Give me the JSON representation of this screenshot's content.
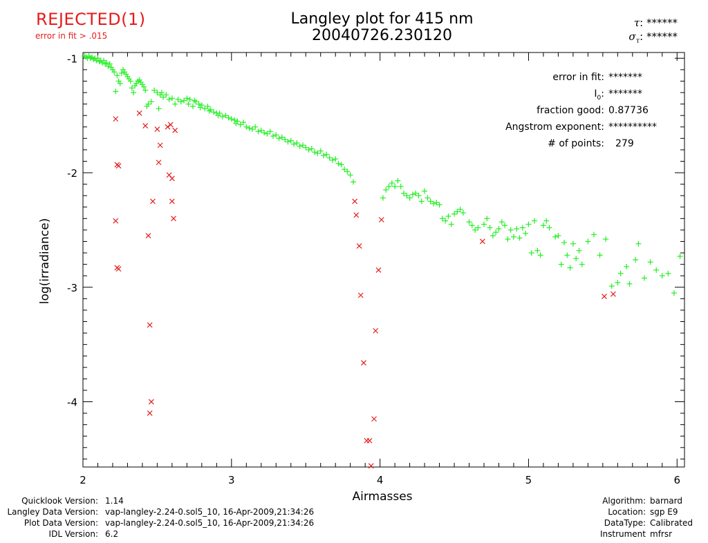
{
  "status": {
    "label": "REJECTED(1)",
    "reason": "error in fit > .015"
  },
  "plot_title": {
    "line1": "Langley plot for 415 nm",
    "line2": "20040726.230120"
  },
  "tau": {
    "symbol": "τ",
    "value": "******"
  },
  "sigma_tau": {
    "symbol": "σ",
    "subscript": "τ",
    "value": "******"
  },
  "stats": {
    "error_in_fit": {
      "label": "error in fit:",
      "value": "*******"
    },
    "i0": {
      "label": "I",
      "subscript": "0",
      "suffix": ":",
      "value": "*******"
    },
    "fraction_good": {
      "label": "fraction good:",
      "value": "0.87736"
    },
    "angstrom": {
      "label": "Angstrom exponent:",
      "value": "**********"
    },
    "num_points": {
      "label": "# of points:",
      "value": "279"
    }
  },
  "footer_left": [
    {
      "label": "Quicklook Version:",
      "value": "1.14"
    },
    {
      "label": "Langley Data Version:",
      "value": "vap-langley-2.24-0.sol5_10, 16-Apr-2009,21:34:26"
    },
    {
      "label": "Plot Data Version:",
      "value": "vap-langley-2.24-0.sol5_10, 16-Apr-2009,21:34:26"
    },
    {
      "label": "IDL Version:",
      "value": "6.2"
    }
  ],
  "footer_right": [
    {
      "label": "Algorithm:",
      "value": "barnard"
    },
    {
      "label": "Location:",
      "value": "sgp E9"
    },
    {
      "label": "DataType:",
      "value": "Calibrated"
    },
    {
      "label": "Instrument",
      "value": "mfrsr"
    }
  ],
  "colors": {
    "good": "#22ee22",
    "rejected": "#e51c1c",
    "status": "#e51c1c",
    "axis": "#000000"
  },
  "chart_data": {
    "type": "scatter",
    "title": "Langley plot for 415 nm",
    "subtitle": "20040726.230120",
    "xlabel": "Airmasses",
    "ylabel": "log(irradiance)",
    "xlim": [
      2.0,
      6.05
    ],
    "ylim": [
      -4.57,
      -0.95
    ],
    "xticks": [
      2,
      3,
      4,
      5,
      6
    ],
    "yticks": [
      -1,
      -2,
      -3,
      -4
    ],
    "series": [
      {
        "name": "good",
        "marker": "+",
        "color": "#22ee22",
        "points": [
          [
            2.01,
            -0.98
          ],
          [
            2.02,
            -0.99
          ],
          [
            2.03,
            -1.0
          ],
          [
            2.04,
            -0.98
          ],
          [
            2.05,
            -1.0
          ],
          [
            2.06,
            -0.99
          ],
          [
            2.07,
            -1.01
          ],
          [
            2.08,
            -1.0
          ],
          [
            2.09,
            -1.02
          ],
          [
            2.1,
            -1.0
          ],
          [
            2.11,
            -1.03
          ],
          [
            2.12,
            -1.02
          ],
          [
            2.13,
            -1.04
          ],
          [
            2.14,
            -1.02
          ],
          [
            2.15,
            -1.05
          ],
          [
            2.16,
            -1.04
          ],
          [
            2.17,
            -1.07
          ],
          [
            2.18,
            -1.05
          ],
          [
            2.19,
            -1.08
          ],
          [
            2.2,
            -1.1
          ],
          [
            2.21,
            -1.12
          ],
          [
            2.22,
            -1.29
          ],
          [
            2.23,
            -1.15
          ],
          [
            2.24,
            -1.2
          ],
          [
            2.25,
            -1.22
          ],
          [
            2.26,
            -1.13
          ],
          [
            2.27,
            -1.1
          ],
          [
            2.28,
            -1.12
          ],
          [
            2.29,
            -1.14
          ],
          [
            2.3,
            -1.16
          ],
          [
            2.31,
            -1.18
          ],
          [
            2.32,
            -1.2
          ],
          [
            2.33,
            -1.26
          ],
          [
            2.34,
            -1.3
          ],
          [
            2.35,
            -1.24
          ],
          [
            2.36,
            -1.22
          ],
          [
            2.37,
            -1.2
          ],
          [
            2.38,
            -1.19
          ],
          [
            2.39,
            -1.21
          ],
          [
            2.4,
            -1.23
          ],
          [
            2.41,
            -1.25
          ],
          [
            2.42,
            -1.28
          ],
          [
            2.43,
            -1.42
          ],
          [
            2.44,
            -1.4
          ],
          [
            2.46,
            -1.38
          ],
          [
            2.48,
            -1.28
          ],
          [
            2.5,
            -1.3
          ],
          [
            2.51,
            -1.44
          ],
          [
            2.52,
            -1.32
          ],
          [
            2.53,
            -1.3
          ],
          [
            2.54,
            -1.34
          ],
          [
            2.56,
            -1.32
          ],
          [
            2.58,
            -1.36
          ],
          [
            2.6,
            -1.35
          ],
          [
            2.62,
            -1.4
          ],
          [
            2.64,
            -1.36
          ],
          [
            2.66,
            -1.38
          ],
          [
            2.68,
            -1.37
          ],
          [
            2.7,
            -1.35
          ],
          [
            2.71,
            -1.4
          ],
          [
            2.72,
            -1.36
          ],
          [
            2.74,
            -1.42
          ],
          [
            2.75,
            -1.37
          ],
          [
            2.76,
            -1.38
          ],
          [
            2.78,
            -1.4
          ],
          [
            2.79,
            -1.43
          ],
          [
            2.8,
            -1.41
          ],
          [
            2.82,
            -1.44
          ],
          [
            2.84,
            -1.42
          ],
          [
            2.85,
            -1.46
          ],
          [
            2.86,
            -1.45
          ],
          [
            2.88,
            -1.47
          ],
          [
            2.9,
            -1.48
          ],
          [
            2.91,
            -1.5
          ],
          [
            2.92,
            -1.48
          ],
          [
            2.94,
            -1.51
          ],
          [
            2.96,
            -1.5
          ],
          [
            2.98,
            -1.52
          ],
          [
            3.0,
            -1.53
          ],
          [
            3.02,
            -1.54
          ],
          [
            3.03,
            -1.57
          ],
          [
            3.04,
            -1.55
          ],
          [
            3.06,
            -1.58
          ],
          [
            3.08,
            -1.56
          ],
          [
            3.1,
            -1.6
          ],
          [
            3.12,
            -1.61
          ],
          [
            3.14,
            -1.62
          ],
          [
            3.16,
            -1.6
          ],
          [
            3.18,
            -1.64
          ],
          [
            3.2,
            -1.63
          ],
          [
            3.22,
            -1.65
          ],
          [
            3.24,
            -1.66
          ],
          [
            3.26,
            -1.64
          ],
          [
            3.28,
            -1.68
          ],
          [
            3.3,
            -1.67
          ],
          [
            3.32,
            -1.7
          ],
          [
            3.34,
            -1.69
          ],
          [
            3.36,
            -1.71
          ],
          [
            3.38,
            -1.73
          ],
          [
            3.4,
            -1.72
          ],
          [
            3.42,
            -1.75
          ],
          [
            3.44,
            -1.74
          ],
          [
            3.46,
            -1.77
          ],
          [
            3.48,
            -1.76
          ],
          [
            3.5,
            -1.78
          ],
          [
            3.52,
            -1.8
          ],
          [
            3.54,
            -1.79
          ],
          [
            3.56,
            -1.82
          ],
          [
            3.58,
            -1.83
          ],
          [
            3.6,
            -1.81
          ],
          [
            3.62,
            -1.85
          ],
          [
            3.64,
            -1.84
          ],
          [
            3.66,
            -1.87
          ],
          [
            3.68,
            -1.89
          ],
          [
            3.7,
            -1.88
          ],
          [
            3.72,
            -1.92
          ],
          [
            3.74,
            -1.93
          ],
          [
            3.76,
            -1.97
          ],
          [
            3.78,
            -1.99
          ],
          [
            3.8,
            -2.02
          ],
          [
            3.82,
            -2.08
          ],
          [
            4.02,
            -2.22
          ],
          [
            4.04,
            -2.15
          ],
          [
            4.06,
            -2.12
          ],
          [
            4.08,
            -2.09
          ],
          [
            4.1,
            -2.12
          ],
          [
            4.12,
            -2.07
          ],
          [
            4.14,
            -2.12
          ],
          [
            4.16,
            -2.18
          ],
          [
            4.18,
            -2.2
          ],
          [
            4.2,
            -2.22
          ],
          [
            4.22,
            -2.19
          ],
          [
            4.24,
            -2.18
          ],
          [
            4.26,
            -2.2
          ],
          [
            4.28,
            -2.25
          ],
          [
            4.3,
            -2.16
          ],
          [
            4.32,
            -2.22
          ],
          [
            4.34,
            -2.25
          ],
          [
            4.36,
            -2.27
          ],
          [
            4.38,
            -2.26
          ],
          [
            4.4,
            -2.28
          ],
          [
            4.42,
            -2.4
          ],
          [
            4.44,
            -2.42
          ],
          [
            4.46,
            -2.38
          ],
          [
            4.48,
            -2.45
          ],
          [
            4.5,
            -2.36
          ],
          [
            4.52,
            -2.34
          ],
          [
            4.54,
            -2.32
          ],
          [
            4.56,
            -2.35
          ],
          [
            4.6,
            -2.43
          ],
          [
            4.62,
            -2.46
          ],
          [
            4.64,
            -2.5
          ],
          [
            4.66,
            -2.48
          ],
          [
            4.7,
            -2.45
          ],
          [
            4.72,
            -2.4
          ],
          [
            4.74,
            -2.48
          ],
          [
            4.76,
            -2.55
          ],
          [
            4.78,
            -2.52
          ],
          [
            4.8,
            -2.49
          ],
          [
            4.82,
            -2.43
          ],
          [
            4.84,
            -2.46
          ],
          [
            4.86,
            -2.58
          ],
          [
            4.88,
            -2.5
          ],
          [
            4.9,
            -2.56
          ],
          [
            4.92,
            -2.49
          ],
          [
            4.94,
            -2.57
          ],
          [
            4.96,
            -2.48
          ],
          [
            4.98,
            -2.53
          ],
          [
            5.0,
            -2.45
          ],
          [
            5.02,
            -2.7
          ],
          [
            5.04,
            -2.42
          ],
          [
            5.06,
            -2.68
          ],
          [
            5.08,
            -2.72
          ],
          [
            5.1,
            -2.46
          ],
          [
            5.12,
            -2.42
          ],
          [
            5.14,
            -2.48
          ],
          [
            5.18,
            -2.56
          ],
          [
            5.2,
            -2.55
          ],
          [
            5.22,
            -2.8
          ],
          [
            5.24,
            -2.61
          ],
          [
            5.26,
            -2.72
          ],
          [
            5.28,
            -2.83
          ],
          [
            5.3,
            -2.62
          ],
          [
            5.32,
            -2.75
          ],
          [
            5.34,
            -2.68
          ],
          [
            5.36,
            -2.8
          ],
          [
            5.4,
            -2.6
          ],
          [
            5.44,
            -2.54
          ],
          [
            5.48,
            -2.72
          ],
          [
            5.52,
            -2.58
          ],
          [
            5.56,
            -2.99
          ],
          [
            5.6,
            -2.96
          ],
          [
            5.62,
            -2.88
          ],
          [
            5.66,
            -2.82
          ],
          [
            5.68,
            -2.97
          ],
          [
            5.72,
            -2.76
          ],
          [
            5.74,
            -2.62
          ],
          [
            5.78,
            -2.92
          ],
          [
            5.82,
            -2.78
          ],
          [
            5.86,
            -2.85
          ],
          [
            5.9,
            -2.9
          ],
          [
            5.94,
            -2.88
          ],
          [
            5.98,
            -3.05
          ],
          [
            6.02,
            -2.73
          ]
        ]
      },
      {
        "name": "rejected",
        "marker": "x",
        "color": "#e51c1c",
        "points": [
          [
            2.22,
            -1.53
          ],
          [
            2.23,
            -1.93
          ],
          [
            2.24,
            -1.94
          ],
          [
            2.22,
            -2.42
          ],
          [
            2.24,
            -2.84
          ],
          [
            2.23,
            -2.83
          ],
          [
            2.38,
            -1.48
          ],
          [
            2.42,
            -1.59
          ],
          [
            2.44,
            -2.55
          ],
          [
            2.45,
            -3.33
          ],
          [
            2.46,
            -4.0
          ],
          [
            2.45,
            -4.1
          ],
          [
            2.47,
            -2.25
          ],
          [
            2.5,
            -1.62
          ],
          [
            2.51,
            -1.91
          ],
          [
            2.52,
            -1.76
          ],
          [
            2.57,
            -1.6
          ],
          [
            2.58,
            -2.02
          ],
          [
            2.59,
            -1.58
          ],
          [
            2.6,
            -2.05
          ],
          [
            2.6,
            -2.25
          ],
          [
            2.61,
            -2.4
          ],
          [
            2.62,
            -1.63
          ],
          [
            3.83,
            -2.25
          ],
          [
            3.84,
            -2.37
          ],
          [
            3.86,
            -2.64
          ],
          [
            3.87,
            -3.07
          ],
          [
            3.89,
            -3.66
          ],
          [
            3.91,
            -4.34
          ],
          [
            3.93,
            -4.34
          ],
          [
            3.94,
            -4.56
          ],
          [
            3.96,
            -4.15
          ],
          [
            3.97,
            -3.38
          ],
          [
            3.99,
            -2.85
          ],
          [
            4.01,
            -2.41
          ],
          [
            4.69,
            -2.6
          ],
          [
            5.51,
            -3.08
          ],
          [
            5.57,
            -3.06
          ]
        ]
      }
    ]
  }
}
